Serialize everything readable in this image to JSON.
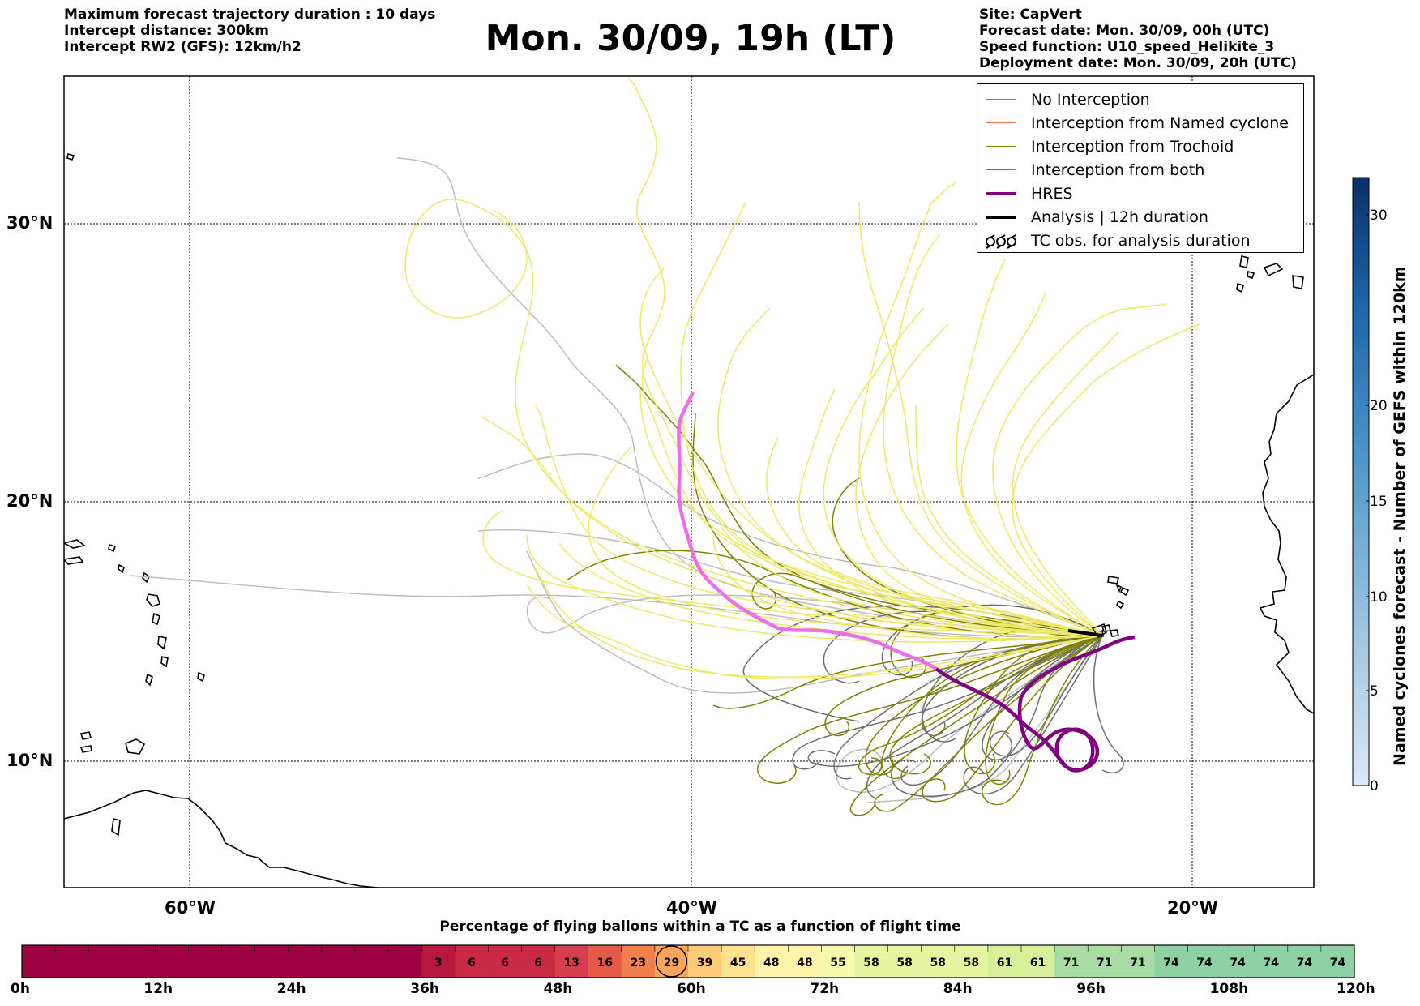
{
  "header_left": [
    "Maximum forecast trajectory duration : 10 days",
    "Intercept distance: 300km",
    "Intercept RW2 (GFS):  12km/h2"
  ],
  "title": "Mon. 30/09, 19h (LT)",
  "header_right": [
    "Site: CapVert",
    "Forecast date: Mon. 30/09, 00h (UTC)",
    "Speed function: U10_speed_Helikite_3",
    "Deployment date: Mon. 30/09, 20h (UTC)"
  ],
  "map": {
    "lon_labels": [
      "60°W",
      "40°W",
      "20°W"
    ],
    "lat_labels": [
      "30°N",
      "20°N",
      "10°N"
    ],
    "launch_site": "CapVert"
  },
  "legend": [
    {
      "label": "No Interception",
      "color": "#808080",
      "style": "line"
    },
    {
      "label": "Interception from Named cyclone",
      "color": "#f47142",
      "style": "line"
    },
    {
      "label": "Interception from Trochoid",
      "color": "#808000",
      "style": "line"
    },
    {
      "label": "Interception from both",
      "color": "#2ca02c",
      "style": "line"
    },
    {
      "label": "HRES",
      "color": "#800080",
      "style": "thick"
    },
    {
      "label": "Analysis | 12h duration",
      "color": "#000000",
      "style": "thick"
    },
    {
      "label": "TC obs. for analysis duration",
      "color": "#000000",
      "style": "cyclone-icon"
    }
  ],
  "colorbar": {
    "title": "Named cyclones forecast - Number of GEFS within 120km",
    "ticks": [
      "0",
      "5",
      "10",
      "15",
      "20",
      "30"
    ]
  },
  "timeline": {
    "title": "Percentage of flying ballons within a TC as a function of flight time",
    "tick_labels": [
      "0h",
      "12h",
      "24h",
      "36h",
      "48h",
      "60h",
      "72h",
      "84h",
      "96h",
      "108h",
      "120h"
    ],
    "values": [
      null,
      null,
      null,
      null,
      null,
      null,
      null,
      null,
      null,
      null,
      null,
      null,
      3,
      6,
      6,
      6,
      13,
      16,
      23,
      29,
      39,
      45,
      48,
      48,
      55,
      58,
      58,
      58,
      58,
      61,
      61,
      71,
      71,
      71,
      74,
      74,
      74,
      74,
      74,
      74
    ],
    "highlight_index": 19
  }
}
